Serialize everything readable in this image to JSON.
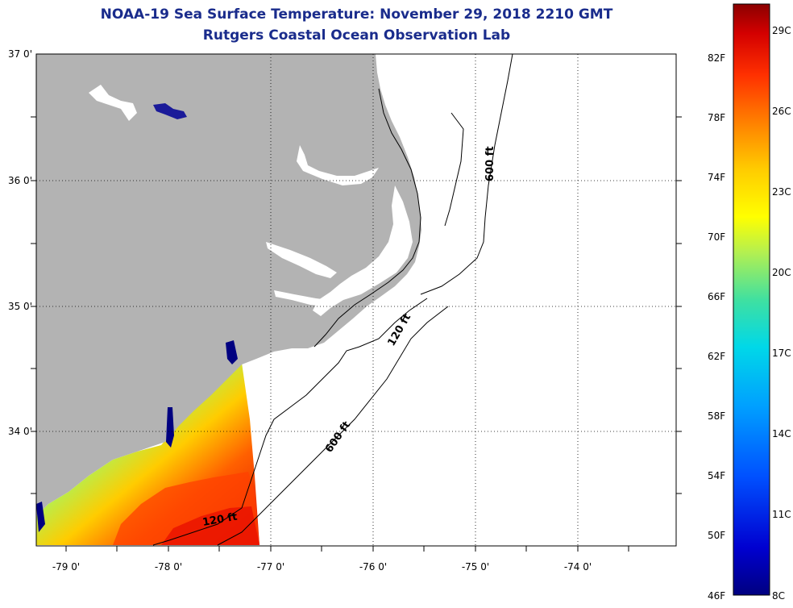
{
  "title_line1": "NOAA-19 Sea Surface Temperature:  November 29, 2018 2210 GMT",
  "title_line2": "Rutgers Coastal Ocean Observation Lab",
  "lat_labels": [
    "37 0'",
    "36 0'",
    "35 0'",
    "34 0'"
  ],
  "lon_labels": [
    "-79 0'",
    "-78 0'",
    "-77 0'",
    "-76 0'",
    "-75 0'",
    "-74 0'"
  ],
  "isobath_labels": {
    "north_600": "600 ft",
    "mid_120": "120 ft",
    "south_600": "600 ft",
    "south_120": "120 ft"
  },
  "colorbar": {
    "fahrenheit": [
      "82F",
      "78F",
      "74F",
      "70F",
      "66F",
      "62F",
      "58F",
      "54F",
      "50F",
      "46F"
    ],
    "celsius": [
      "29C",
      "26C",
      "23C",
      "20C",
      "17C",
      "14C",
      "11C",
      "8C"
    ],
    "colors": [
      "#8b0000",
      "#d40000",
      "#ff3000",
      "#ff8000",
      "#ffcc00",
      "#ffff00",
      "#b4f050",
      "#40e0a0",
      "#00d8e8",
      "#00a0ff",
      "#0050ff",
      "#0000d0",
      "#000080"
    ]
  },
  "colors": {
    "land": "#b3b3b3",
    "ocean_no_data": "#ffffff",
    "title": "#1a2c8c"
  }
}
